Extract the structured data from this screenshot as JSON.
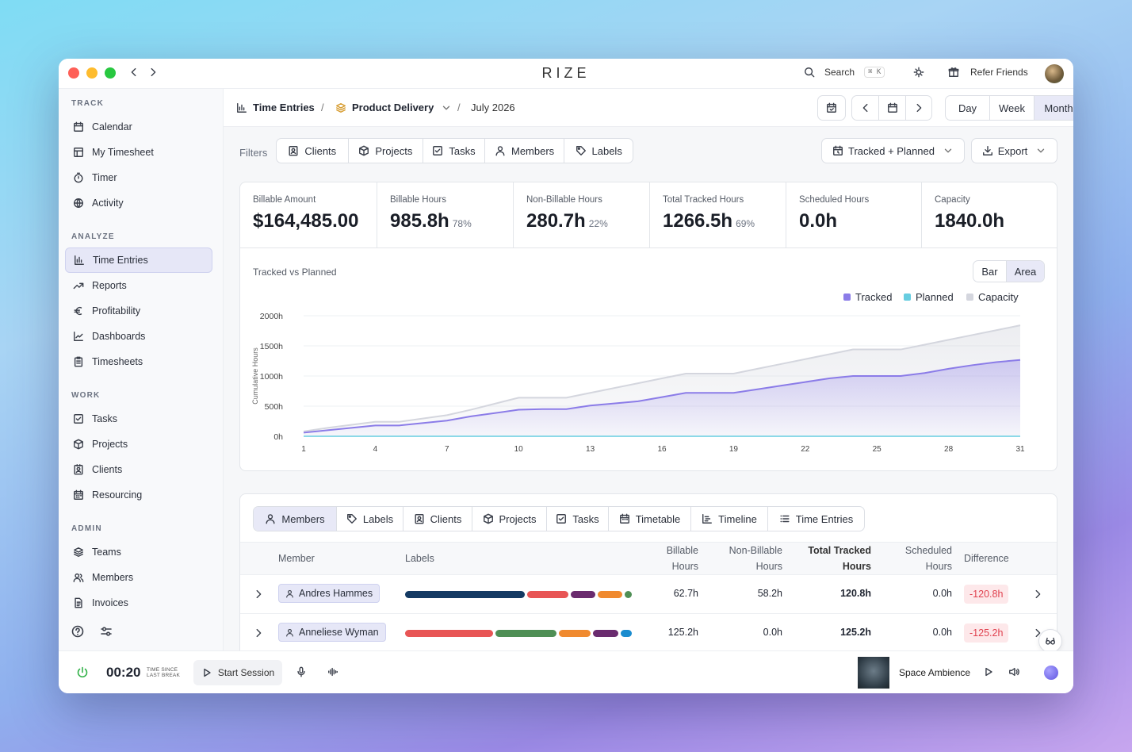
{
  "app": {
    "brand": "RIZE"
  },
  "titlebar": {
    "search_label": "Search",
    "search_shortcut": "⌘ K",
    "refer_label": "Refer Friends"
  },
  "sidebar": {
    "track_title": "TRACK",
    "track": [
      {
        "label": "Calendar",
        "icon": "calendar-icon"
      },
      {
        "label": "My Timesheet",
        "icon": "timesheet-icon"
      },
      {
        "label": "Timer",
        "icon": "timer-icon"
      },
      {
        "label": "Activity",
        "icon": "globe-icon"
      }
    ],
    "analyze_title": "ANALYZE",
    "analyze": [
      {
        "label": "Time Entries",
        "icon": "bar-chart-icon",
        "active": true
      },
      {
        "label": "Reports",
        "icon": "trend-icon"
      },
      {
        "label": "Profitability",
        "icon": "euro-icon"
      },
      {
        "label": "Dashboards",
        "icon": "line-chart-icon"
      },
      {
        "label": "Timesheets",
        "icon": "clipboard-icon"
      }
    ],
    "work_title": "WORK",
    "work": [
      {
        "label": "Tasks",
        "icon": "check-square-icon"
      },
      {
        "label": "Projects",
        "icon": "cube-icon"
      },
      {
        "label": "Clients",
        "icon": "contact-icon"
      },
      {
        "label": "Resourcing",
        "icon": "calendar-grid-icon"
      }
    ],
    "admin_title": "ADMIN",
    "admin": [
      {
        "label": "Teams",
        "icon": "layers-icon"
      },
      {
        "label": "Members",
        "icon": "users-icon"
      },
      {
        "label": "Invoices",
        "icon": "invoice-icon"
      }
    ]
  },
  "breadcrumb": {
    "root": "Time Entries",
    "project": "Product Delivery",
    "period": "July 2026"
  },
  "range": {
    "options": [
      "Day",
      "Week",
      "Month"
    ],
    "selected": "Month"
  },
  "filters": {
    "label": "Filters",
    "items": [
      "Clients",
      "Projects",
      "Tasks",
      "Members",
      "Labels"
    ],
    "mode": "Tracked + Planned",
    "export": "Export"
  },
  "stats": [
    {
      "label": "Billable Amount",
      "value": "$164,485.00",
      "pct": ""
    },
    {
      "label": "Billable Hours",
      "value": "985.8h",
      "pct": "78%"
    },
    {
      "label": "Non-Billable Hours",
      "value": "280.7h",
      "pct": "22%"
    },
    {
      "label": "Total Tracked Hours",
      "value": "1266.5h",
      "pct": "69%"
    },
    {
      "label": "Scheduled Hours",
      "value": "0.0h",
      "pct": ""
    },
    {
      "label": "Capacity",
      "value": "1840.0h",
      "pct": ""
    }
  ],
  "chart_title": "Tracked vs Planned",
  "chart_toggle": {
    "options": [
      "Bar",
      "Area"
    ],
    "selected": "Area"
  },
  "chart_data": {
    "type": "area",
    "title": "Tracked vs Planned",
    "ylabel": "Cumulative Hours",
    "ylim": [
      0,
      2000
    ],
    "y_ticks": [
      "0h",
      "500h",
      "1000h",
      "1500h",
      "2000h"
    ],
    "x_ticks": [
      1,
      4,
      7,
      10,
      13,
      16,
      19,
      22,
      25,
      28,
      31
    ],
    "x": [
      1,
      2,
      4,
      5,
      7,
      8,
      10,
      11,
      12,
      13,
      15,
      16,
      17,
      18,
      19,
      20,
      21,
      22,
      23,
      24,
      25,
      26,
      27,
      28,
      29,
      30,
      31
    ],
    "series": [
      {
        "name": "Tracked",
        "color": "#8b7ce8",
        "values": [
          60,
          100,
          180,
          180,
          260,
          330,
          440,
          450,
          450,
          510,
          580,
          650,
          720,
          720,
          720,
          780,
          840,
          900,
          960,
          1000,
          1000,
          1000,
          1050,
          1120,
          1180,
          1230,
          1267
        ]
      },
      {
        "name": "Planned",
        "color": "#67cde0",
        "values": [
          0,
          0,
          0,
          0,
          0,
          0,
          0,
          0,
          0,
          0,
          0,
          0,
          0,
          0,
          0,
          0,
          0,
          0,
          0,
          0,
          0,
          0,
          0,
          0,
          0,
          0,
          0
        ]
      },
      {
        "name": "Capacity",
        "color": "#d4d6de",
        "values": [
          80,
          140,
          240,
          240,
          350,
          440,
          640,
          640,
          640,
          720,
          880,
          960,
          1040,
          1040,
          1040,
          1120,
          1200,
          1280,
          1360,
          1440,
          1440,
          1440,
          1520,
          1600,
          1680,
          1760,
          1840
        ]
      }
    ]
  },
  "tabs": {
    "items": [
      "Members",
      "Labels",
      "Clients",
      "Projects",
      "Tasks",
      "Timetable",
      "Timeline",
      "Time Entries"
    ],
    "selected": "Members"
  },
  "table": {
    "headers": {
      "member": "Member",
      "labels": "Labels",
      "billable": "Billable\nHours",
      "nonbillable": "Non-Billable\nHours",
      "total": "Total Tracked\nHours",
      "scheduled": "Scheduled\nHours",
      "difference": "Difference"
    },
    "rows": [
      {
        "member": "Andres Hammes",
        "billable": "62.7h",
        "nonbillable": "58.2h",
        "total": "120.8h",
        "scheduled": "0.0h",
        "difference": "-120.8h",
        "labels": [
          {
            "color": "#143a63",
            "share": 0.53
          },
          {
            "color": "#e85555",
            "share": 0.18
          },
          {
            "color": "#6a2b6e",
            "share": 0.11
          },
          {
            "color": "#f08a2f",
            "share": 0.11
          },
          {
            "color": "#4f8f55",
            "share": 0.03
          }
        ]
      },
      {
        "member": "Anneliese Wyman",
        "billable": "125.2h",
        "nonbillable": "0.0h",
        "total": "125.2h",
        "scheduled": "0.0h",
        "difference": "-125.2h",
        "labels": [
          {
            "color": "#e85555",
            "share": 0.39
          },
          {
            "color": "#4f8f55",
            "share": 0.27
          },
          {
            "color": "#f08a2f",
            "share": 0.14
          },
          {
            "color": "#6a2b6e",
            "share": 0.11
          },
          {
            "color": "#1a8ccf",
            "share": 0.05
          }
        ]
      }
    ]
  },
  "footer": {
    "timer": "00:20",
    "timer_caption_1": "TIME SINCE",
    "timer_caption_2": "LAST BREAK",
    "start_session": "Start Session",
    "track_name": "Space Ambience"
  }
}
